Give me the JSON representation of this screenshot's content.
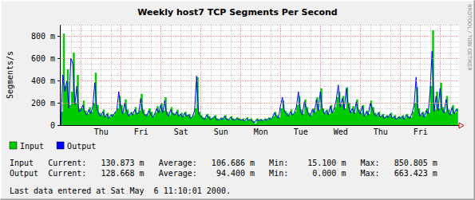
{
  "chart_data": {
    "type": "line",
    "title": "Weekly host7 TCP Segments Per Second",
    "y_label": "Segments/s",
    "annotations": [
      "RRDTOOL / TOBI OETIKER"
    ],
    "stats_lines": [
      "Input   Current:   130.873 m   Average:   106.686 m   Min:    15.100 m   Max:   850.805 m",
      "Output  Current:   128.668 m   Average:    94.400 m   Min:     0.000 m   Max:   663.423 m"
    ],
    "footer": "Last data entered at Sat May  6 11:10:01 2000.",
    "grid": true,
    "legend": "bottom-left",
    "ylim": [
      0,
      900
    ],
    "yticks": [
      0,
      {
        "value": 200,
        "label": "200 m"
      },
      {
        "value": 400,
        "label": "400 m"
      },
      {
        "value": 600,
        "label": "600 m"
      },
      {
        "value": 800,
        "label": "800 m"
      }
    ],
    "categories": [
      null,
      null,
      null,
      null,
      null,
      null,
      null,
      null,
      null,
      null,
      null,
      null,
      null,
      null,
      null,
      null,
      null,
      null,
      null,
      null,
      "Thu",
      null,
      null,
      null,
      null,
      null,
      null,
      null,
      null,
      null,
      null,
      null,
      null,
      null,
      null,
      null,
      null,
      null,
      null,
      null,
      "Fri",
      null,
      null,
      null,
      null,
      null,
      null,
      null,
      null,
      null,
      null,
      null,
      null,
      null,
      null,
      null,
      null,
      null,
      null,
      null,
      "Sat",
      null,
      null,
      null,
      null,
      null,
      null,
      null,
      null,
      null,
      null,
      null,
      null,
      null,
      null,
      null,
      null,
      null,
      null,
      null,
      "Sun",
      null,
      null,
      null,
      null,
      null,
      null,
      null,
      null,
      null,
      null,
      null,
      null,
      null,
      null,
      null,
      null,
      null,
      null,
      null,
      "Mon",
      null,
      null,
      null,
      null,
      null,
      null,
      null,
      null,
      null,
      null,
      null,
      null,
      null,
      null,
      null,
      null,
      null,
      null,
      null,
      "Tue",
      null,
      null,
      null,
      null,
      null,
      null,
      null,
      null,
      null,
      null,
      null,
      null,
      null,
      null,
      null,
      null,
      null,
      null,
      null,
      "Wed",
      null,
      null,
      null,
      null,
      null,
      null,
      null,
      null,
      null,
      null,
      null,
      null,
      null,
      null,
      null,
      null,
      null,
      null,
      null,
      "Thu",
      null,
      null,
      null,
      null,
      null,
      null,
      null,
      null,
      null,
      null,
      null,
      null,
      null,
      null,
      null,
      null,
      null,
      null,
      null,
      "Fri",
      null,
      null,
      null,
      null,
      null,
      null,
      null,
      null,
      null,
      null,
      null,
      null,
      null,
      null,
      null,
      null,
      null,
      null,
      null
    ],
    "series": [
      {
        "name": "Input",
        "color": "#00cc00",
        "type": "area",
        "values": [
          120,
          820,
          350,
          500,
          180,
          300,
          650,
          200,
          450,
          150,
          150,
          220,
          130,
          100,
          160,
          120,
          200,
          470,
          180,
          110,
          90,
          140,
          80,
          110,
          70,
          100,
          90,
          120,
          150,
          260,
          180,
          110,
          230,
          140,
          90,
          120,
          100,
          160,
          110,
          130,
          280,
          140,
          100,
          90,
          150,
          120,
          80,
          110,
          170,
          130,
          200,
          130,
          250,
          120,
          90,
          160,
          110,
          100,
          140,
          90,
          110,
          80,
          120,
          90,
          100,
          70,
          90,
          150,
          430,
          120,
          90,
          70,
          60,
          100,
          80,
          60,
          70,
          90,
          60,
          50,
          70,
          60,
          90,
          60,
          50,
          80,
          60,
          50,
          70,
          60,
          50,
          60,
          40,
          70,
          50,
          60,
          40,
          15.1,
          60,
          45,
          55,
          40,
          60,
          50,
          70,
          60,
          80,
          120,
          90,
          70,
          150,
          220,
          130,
          110,
          90,
          140,
          100,
          120,
          180,
          260,
          140,
          100,
          230,
          160,
          110,
          90,
          150,
          120,
          250,
          140,
          330,
          150,
          110,
          140,
          100,
          180,
          120,
          160,
          250,
          300,
          180,
          260,
          150,
          340,
          200,
          120,
          170,
          110,
          230,
          140,
          110,
          180,
          90,
          130,
          100,
          220,
          160,
          110,
          90,
          120,
          80,
          100,
          70,
          90,
          80,
          110,
          70,
          90,
          60,
          80,
          70,
          90,
          60,
          100,
          80,
          70,
          120,
          200,
          340,
          150,
          90,
          120,
          80,
          150,
          110,
          350,
          850.805,
          140,
          300,
          150,
          380,
          160,
          120,
          260,
          140,
          100,
          180,
          110,
          150,
          130.873
        ]
      },
      {
        "name": "Output",
        "color": "#0000ff",
        "type": "line",
        "values": [
          0,
          450,
          300,
          400,
          150,
          600,
          550,
          180,
          350,
          120,
          130,
          180,
          110,
          90,
          140,
          100,
          170,
          380,
          150,
          100,
          80,
          120,
          70,
          100,
          60,
          90,
          80,
          110,
          130,
          300,
          160,
          100,
          200,
          120,
          80,
          110,
          90,
          140,
          100,
          110,
          240,
          120,
          90,
          80,
          130,
          100,
          70,
          100,
          150,
          110,
          180,
          110,
          220,
          100,
          80,
          140,
          100,
          90,
          120,
          80,
          100,
          70,
          110,
          80,
          90,
          60,
          80,
          130,
          440,
          100,
          80,
          60,
          50,
          90,
          70,
          50,
          60,
          80,
          50,
          45,
          60,
          50,
          80,
          50,
          45,
          70,
          50,
          45,
          60,
          50,
          45,
          50,
          35,
          60,
          45,
          50,
          35,
          20,
          50,
          40,
          50,
          35,
          50,
          45,
          60,
          50,
          70,
          110,
          80,
          60,
          170,
          250,
          120,
          100,
          80,
          120,
          90,
          110,
          160,
          300,
          130,
          90,
          210,
          150,
          100,
          80,
          140,
          110,
          230,
          130,
          300,
          140,
          100,
          130,
          90,
          170,
          110,
          150,
          230,
          360,
          160,
          240,
          140,
          330,
          180,
          110,
          150,
          100,
          210,
          130,
          100,
          170,
          80,
          120,
          90,
          200,
          150,
          100,
          80,
          110,
          70,
          90,
          60,
          80,
          70,
          100,
          60,
          80,
          50,
          70,
          60,
          80,
          50,
          90,
          70,
          60,
          110,
          180,
          430,
          130,
          80,
          110,
          70,
          130,
          100,
          300,
          663.423,
          120,
          260,
          130,
          330,
          140,
          110,
          230,
          120,
          90,
          160,
          100,
          140,
          128.668
        ]
      }
    ]
  }
}
